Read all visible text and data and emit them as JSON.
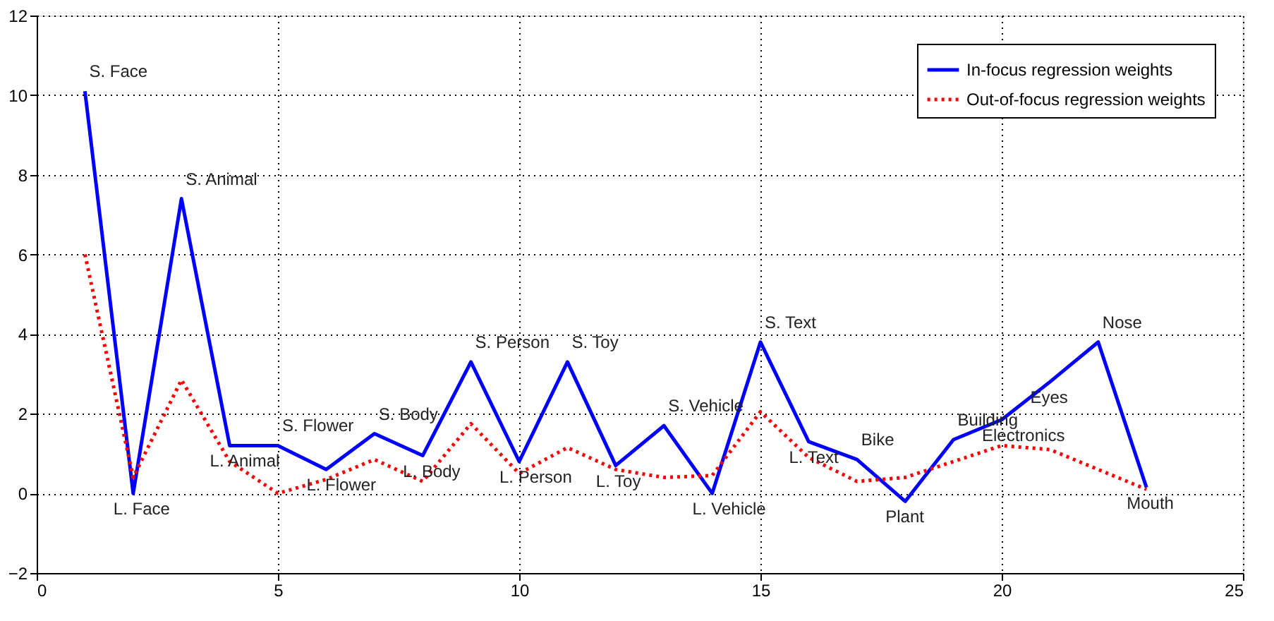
{
  "chart_data": {
    "type": "line",
    "x": [
      1,
      2,
      3,
      4,
      5,
      6,
      7,
      8,
      9,
      10,
      11,
      12,
      13,
      14,
      15,
      16,
      17,
      18,
      19,
      20,
      21,
      22,
      23
    ],
    "series": [
      {
        "name": "In-focus regression weights",
        "color": "#0000ff",
        "line_style": "solid",
        "values": [
          10.1,
          0,
          7.4,
          1.2,
          1.2,
          0.6,
          1.5,
          0.95,
          3.3,
          0.8,
          3.3,
          0.7,
          1.7,
          0,
          3.8,
          1.3,
          0.85,
          -0.2,
          1.35,
          1.85,
          2.8,
          3.8,
          0.15
        ]
      },
      {
        "name": "Out-of-focus regression weights",
        "color": "#ff0000",
        "line_style": "dotted",
        "values": [
          6.0,
          0.4,
          2.85,
          0.8,
          0.0,
          0.35,
          0.85,
          0.3,
          1.75,
          0.5,
          1.15,
          0.6,
          0.4,
          0.45,
          2.05,
          0.9,
          0.3,
          0.4,
          0.8,
          1.2,
          1.1,
          0.6,
          0.1
        ]
      }
    ],
    "xlim": [
      0,
      25
    ],
    "xticks": [
      0,
      5,
      10,
      15,
      20,
      25
    ],
    "ylim": [
      -2,
      12
    ],
    "yticks": [
      -2,
      0,
      2,
      4,
      6,
      8,
      10,
      12
    ],
    "grid": true,
    "legend": "top right",
    "marker": "none",
    "annotations": [
      {
        "text": "S. Face",
        "x": 1,
        "y": 10.1
      },
      {
        "text": "L. Face",
        "x": 2,
        "y": 0
      },
      {
        "text": "S. Animal",
        "x": 3,
        "y": 7.4
      },
      {
        "text": "L. Animal",
        "x": 4,
        "y": 1.2
      },
      {
        "text": "S. Flower",
        "x": 5,
        "y": 1.2
      },
      {
        "text": "L. Flower",
        "x": 6,
        "y": 0.6
      },
      {
        "text": "S. Body",
        "x": 7,
        "y": 1.5
      },
      {
        "text": "L. Body",
        "x": 8,
        "y": 0.95
      },
      {
        "text": "S. Person",
        "x": 9,
        "y": 3.3
      },
      {
        "text": "L. Person",
        "x": 10,
        "y": 0.8
      },
      {
        "text": "S. Toy",
        "x": 11,
        "y": 3.3
      },
      {
        "text": "L. Toy",
        "x": 12,
        "y": 0.7
      },
      {
        "text": "S. Vehicle",
        "x": 13,
        "y": 1.7
      },
      {
        "text": "L. Vehicle",
        "x": 14,
        "y": 0
      },
      {
        "text": "S. Text",
        "x": 15,
        "y": 3.8
      },
      {
        "text": "L. Text",
        "x": 16,
        "y": 1.3
      },
      {
        "text": "Bike",
        "x": 17,
        "y": 0.85
      },
      {
        "text": "Plant",
        "x": 18,
        "y": -0.2
      },
      {
        "text": "Building",
        "x": 19,
        "y": 1.35
      },
      {
        "text": "Electronics",
        "x": 20,
        "y": 1.85
      },
      {
        "text": "Eyes",
        "x": 21,
        "y": 2.8
      },
      {
        "text": "Nose",
        "x": 22,
        "y": 3.8
      },
      {
        "text": "Mouth",
        "x": 23,
        "y": 0.15
      }
    ]
  }
}
